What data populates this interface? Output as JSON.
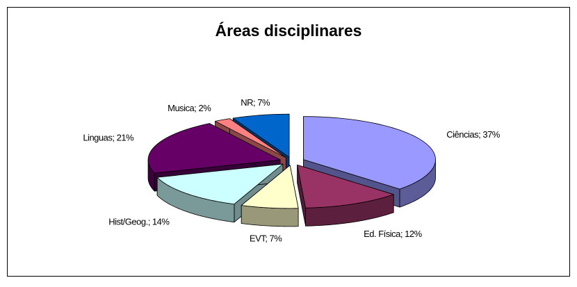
{
  "chart_data": {
    "type": "pie",
    "title": "Áreas disciplinares",
    "values": [
      37,
      12,
      7,
      14,
      21,
      2,
      7
    ],
    "value_labels": [
      "Ciências; 37%",
      "Ed. Física; 12%",
      "EVT; 7%",
      "Hist/Geog.; 14%",
      "Linguas; 21%",
      "Musica; 2%",
      "NR; 7%"
    ],
    "colors": [
      "#9999ff",
      "#993366",
      "#ffffcc",
      "#ccffff",
      "#660066",
      "#ff8080",
      "#0066cc"
    ],
    "exploded": true,
    "three_d": true
  }
}
